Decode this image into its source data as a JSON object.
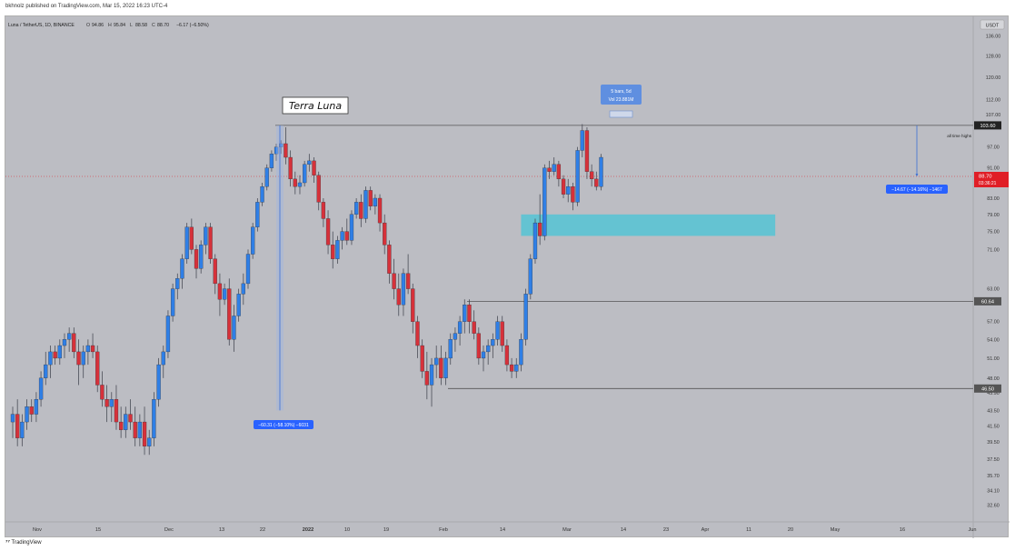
{
  "publisher_line": "bkhnolz published on TradingView.com, Mar 15, 2022 16:23 UTC-4",
  "footer_brand": "TradingView",
  "colors": {
    "background": "#bcbdc3",
    "up": "#2f7fe6",
    "down": "#d6313a",
    "zone": "#5fc3d3",
    "label_blue": "#2962ff",
    "label_red": "#e01e26"
  },
  "chart_data": {
    "type": "candlestick",
    "symbol_line": {
      "symbol": "Luna / TetherUS, 1D, BINANCE",
      "open_label": "O",
      "open": "94.86",
      "high_label": "H",
      "high": "95.84",
      "low_label": "L",
      "low": "88.58",
      "close_label": "C",
      "close": "88.70",
      "change": "−6.17 (−6.50%)"
    },
    "currency": "USDT",
    "y_ticks": [
      136.0,
      128.0,
      120.0,
      112.0,
      107.0,
      97.0,
      91.0,
      83.0,
      79.0,
      75.0,
      71.0,
      63.0,
      57.0,
      54.0,
      51.0,
      48.0,
      45.9,
      43.5,
      41.5,
      39.5,
      37.5,
      35.7,
      34.1,
      32.6
    ],
    "y_tick_labels": [
      "136.00",
      "128.00",
      "120.00",
      "112.00",
      "107.00",
      "97.00",
      "91.00",
      "83.00",
      "79.00",
      "75.00",
      "71.00",
      "63.00",
      "57.00",
      "54.00",
      "51.00",
      "48.00",
      "45.90",
      "43.50",
      "41.50",
      "39.50",
      "37.50",
      "35.70",
      "34.10",
      "32.60"
    ],
    "x_ticks": [
      "Nov",
      "15",
      "Dec",
      "13",
      "22",
      "2022",
      "10",
      "19",
      "Feb",
      "14",
      "Mar",
      "14",
      "23",
      "Apr",
      "11",
      "20",
      "May",
      "16",
      "Jun"
    ],
    "annotations": {
      "title_box": "Terra Luna",
      "measure_left": "−60.31 (−58.10%) −6031",
      "measure_right": "−14.67 (−14.16%) −1467",
      "tooltip_line1": "5 bars, 5d",
      "tooltip_line2": "Vol 23.881M",
      "ath_text": "all time highs",
      "price_ath": "103.60",
      "price_last": "88.70",
      "price_countdown": "03:36:21",
      "price_mid": "60.64",
      "price_low": "46.50"
    },
    "candles": [
      [
        42,
        44,
        40,
        43
      ],
      [
        43,
        45,
        39,
        40
      ],
      [
        40,
        43,
        39,
        42
      ],
      [
        42,
        45,
        41,
        44
      ],
      [
        44,
        45,
        42,
        43
      ],
      [
        43,
        46,
        42,
        45
      ],
      [
        45,
        49,
        44,
        48
      ],
      [
        48,
        52,
        47,
        50
      ],
      [
        50,
        53,
        48,
        52
      ],
      [
        52,
        53,
        50,
        51
      ],
      [
        51,
        54,
        50,
        53
      ],
      [
        53,
        55,
        51,
        54
      ],
      [
        54,
        56,
        52,
        55
      ],
      [
        55,
        56,
        51,
        52
      ],
      [
        52,
        54,
        47,
        50
      ],
      [
        50,
        53,
        48,
        52
      ],
      [
        52,
        54,
        50,
        53
      ],
      [
        53,
        55,
        51,
        52
      ],
      [
        52,
        53,
        46,
        47
      ],
      [
        47,
        49,
        44,
        45
      ],
      [
        45,
        47,
        42,
        44
      ],
      [
        44,
        46,
        42,
        45
      ],
      [
        45,
        47,
        41,
        42
      ],
      [
        42,
        44,
        40,
        41
      ],
      [
        41,
        44,
        40,
        43
      ],
      [
        43,
        45,
        41,
        42
      ],
      [
        42,
        44,
        39,
        40
      ],
      [
        40,
        43,
        39,
        42
      ],
      [
        42,
        44,
        38,
        39
      ],
      [
        39,
        41,
        38,
        40
      ],
      [
        40,
        46,
        39,
        45
      ],
      [
        45,
        51,
        44,
        50
      ],
      [
        50,
        53,
        48,
        52
      ],
      [
        52,
        59,
        51,
        58
      ],
      [
        58,
        64,
        57,
        63
      ],
      [
        63,
        66,
        61,
        65
      ],
      [
        65,
        70,
        63,
        69
      ],
      [
        69,
        77,
        68,
        76
      ],
      [
        76,
        78,
        70,
        71
      ],
      [
        71,
        72,
        65,
        67
      ],
      [
        67,
        73,
        66,
        72
      ],
      [
        72,
        77,
        70,
        76
      ],
      [
        76,
        77,
        68,
        69
      ],
      [
        69,
        70,
        62,
        64
      ],
      [
        64,
        66,
        58,
        61
      ],
      [
        61,
        64,
        60,
        63
      ],
      [
        63,
        65,
        53,
        54
      ],
      [
        54,
        60,
        52,
        58
      ],
      [
        58,
        63,
        57,
        62
      ],
      [
        62,
        66,
        60,
        64
      ],
      [
        64,
        71,
        63,
        70
      ],
      [
        70,
        77,
        69,
        76
      ],
      [
        76,
        83,
        75,
        82
      ],
      [
        82,
        87,
        81,
        86
      ],
      [
        86,
        92,
        85,
        91
      ],
      [
        91,
        96,
        90,
        95
      ],
      [
        95,
        98,
        93,
        97
      ],
      [
        97,
        99,
        95,
        98
      ],
      [
        98,
        103,
        92,
        94
      ],
      [
        94,
        96,
        86,
        88
      ],
      [
        88,
        90,
        84,
        86
      ],
      [
        86,
        89,
        84,
        87
      ],
      [
        87,
        93,
        86,
        92
      ],
      [
        92,
        95,
        90,
        93
      ],
      [
        93,
        94,
        87,
        89
      ],
      [
        89,
        90,
        80,
        82
      ],
      [
        82,
        83,
        76,
        78
      ],
      [
        78,
        80,
        70,
        72
      ],
      [
        72,
        75,
        67,
        69
      ],
      [
        69,
        74,
        68,
        73
      ],
      [
        73,
        76,
        71,
        75
      ],
      [
        75,
        78,
        72,
        73
      ],
      [
        73,
        80,
        72,
        79
      ],
      [
        79,
        83,
        78,
        82
      ],
      [
        82,
        84,
        76,
        78
      ],
      [
        78,
        86,
        77,
        85
      ],
      [
        85,
        86,
        80,
        81
      ],
      [
        81,
        84,
        79,
        83
      ],
      [
        83,
        84,
        75,
        77
      ],
      [
        77,
        79,
        70,
        72
      ],
      [
        72,
        73,
        64,
        66
      ],
      [
        66,
        69,
        61,
        63
      ],
      [
        63,
        66,
        58,
        60
      ],
      [
        60,
        67,
        58,
        66
      ],
      [
        66,
        70,
        62,
        63
      ],
      [
        63,
        64,
        55,
        57
      ],
      [
        57,
        58,
        51,
        53
      ],
      [
        53,
        54,
        48,
        49
      ],
      [
        49,
        52,
        45,
        47
      ],
      [
        47,
        51,
        44,
        50
      ],
      [
        50,
        53,
        48,
        51
      ],
      [
        51,
        53,
        47,
        48
      ],
      [
        48,
        52,
        47,
        51
      ],
      [
        51,
        55,
        50,
        54
      ],
      [
        54,
        56,
        52,
        55
      ],
      [
        55,
        58,
        53,
        57
      ],
      [
        57,
        61,
        55,
        60
      ],
      [
        60,
        61,
        55,
        57
      ],
      [
        57,
        59,
        54,
        55
      ],
      [
        55,
        56,
        50,
        51
      ],
      [
        51,
        53,
        49,
        52
      ],
      [
        52,
        54,
        50,
        53
      ],
      [
        53,
        55,
        51,
        54
      ],
      [
        54,
        58,
        53,
        57
      ],
      [
        57,
        58,
        52,
        53
      ],
      [
        53,
        54,
        49,
        50
      ],
      [
        50,
        51,
        48,
        49
      ],
      [
        49,
        51,
        48,
        50
      ],
      [
        50,
        55,
        49,
        54
      ],
      [
        54,
        63,
        53,
        62
      ],
      [
        62,
        70,
        61,
        69
      ],
      [
        69,
        78,
        68,
        77
      ],
      [
        77,
        84,
        72,
        74
      ],
      [
        74,
        92,
        73,
        91
      ],
      [
        91,
        93,
        88,
        90
      ],
      [
        90,
        94,
        89,
        92
      ],
      [
        92,
        93,
        86,
        88
      ],
      [
        88,
        89,
        83,
        84
      ],
      [
        84,
        88,
        82,
        86
      ],
      [
        86,
        87,
        80,
        82
      ],
      [
        82,
        97,
        81,
        96
      ],
      [
        96,
        104,
        94,
        102
      ],
      [
        102,
        103,
        88,
        90
      ],
      [
        90,
        92,
        86,
        88
      ],
      [
        88,
        90,
        85,
        86
      ],
      [
        86,
        95,
        85,
        94
      ]
    ],
    "zones": [
      {
        "from": 74,
        "to": 79,
        "x_from_idx": 108,
        "x_to_idx": 162
      }
    ],
    "levels": [
      103.6,
      60.64,
      46.5
    ]
  }
}
